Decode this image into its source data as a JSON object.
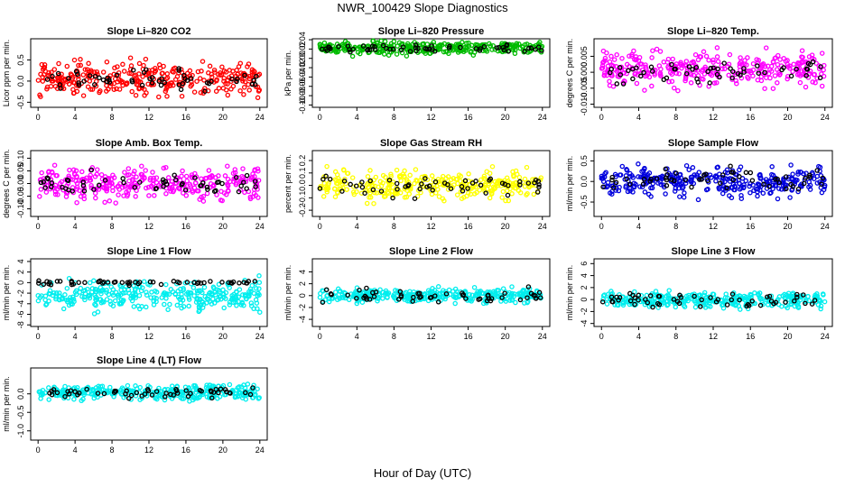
{
  "title": "NWR_100429  Slope Diagnostics",
  "xlabel": "Hour of Day (UTC)",
  "chart_data": [
    {
      "type": "scatter",
      "title": "Slope Li–820 CO2",
      "ylabel": "Licor ppm per min.",
      "xlim": [
        -0.8,
        24.8
      ],
      "ylim": [
        -0.62,
        1.0
      ],
      "xticks": [
        0,
        4,
        8,
        12,
        16,
        20,
        24
      ],
      "xtick_labels": [
        "0",
        "4",
        "8",
        "12",
        "16",
        "20",
        "24"
      ],
      "yticks": [
        -0.5,
        0,
        0.5
      ],
      "ytick_labels": [
        "-0.5",
        "0.0",
        "0.5"
      ],
      "series": [
        {
          "name": "",
          "color": "#ff0000",
          "center": 0.05,
          "spread": 0.35,
          "count": 320
        },
        {
          "name": "",
          "color": "#000000",
          "center": 0.05,
          "spread": 0.22,
          "count": 55
        }
      ]
    },
    {
      "type": "scatter",
      "title": "Slope Li–820 Pressure",
      "ylabel": "kPa per min.",
      "xlim": [
        -0.8,
        24.8
      ],
      "ylim": [
        -0.105,
        0.042
      ],
      "xticks": [
        0,
        4,
        8,
        12,
        16,
        20,
        24
      ],
      "xtick_labels": [
        "0",
        "4",
        "8",
        "12",
        "16",
        "20",
        "24"
      ],
      "yticks": [
        -0.1,
        -0.08,
        -0.06,
        -0.04,
        -0.02,
        0,
        0.02,
        0.04
      ],
      "ytick_labels": [
        "-0.10",
        "-0.08",
        "-0.06",
        "-0.04",
        "-0.02",
        "0.00",
        "0.02",
        "0.04"
      ],
      "series": [
        {
          "name": "",
          "color": "#00bb00",
          "center": 0.022,
          "spread": 0.012,
          "count": 320
        },
        {
          "name": "",
          "color": "#000000",
          "center": 0.022,
          "spread": 0.007,
          "count": 55
        }
      ]
    },
    {
      "type": "scatter",
      "title": "Slope Li–820 Temp.",
      "ylabel": "degrees C per min.",
      "xlim": [
        -0.8,
        24.8
      ],
      "ylim": [
        -0.011,
        0.0105
      ],
      "xticks": [
        0,
        4,
        8,
        12,
        16,
        20,
        24
      ],
      "xtick_labels": [
        "0",
        "4",
        "8",
        "12",
        "16",
        "20",
        "24"
      ],
      "yticks": [
        -0.01,
        -0.005,
        0,
        0.005
      ],
      "ytick_labels": [
        "-0.010",
        "-0.005",
        "0.000",
        "0.005"
      ],
      "series": [
        {
          "name": "",
          "color": "#ff00ff",
          "center": 0.001,
          "spread": 0.0045,
          "count": 320
        },
        {
          "name": "",
          "color": "#000000",
          "center": 0.0,
          "spread": 0.003,
          "count": 55
        }
      ]
    },
    {
      "type": "scatter",
      "title": "Slope Amb. Box Temp.",
      "ylabel": "degrees C per min.",
      "xlim": [
        -0.8,
        24.8
      ],
      "ylim": [
        -0.13,
        0.13
      ],
      "xticks": [
        0,
        4,
        8,
        12,
        16,
        20,
        24
      ],
      "xtick_labels": [
        "0",
        "4",
        "8",
        "12",
        "16",
        "20",
        "24"
      ],
      "yticks": [
        -0.1,
        -0.05,
        0,
        0.05,
        0.1
      ],
      "ytick_labels": [
        "-0.10",
        "-0.05",
        "0.00",
        "0.05",
        "0.10"
      ],
      "series": [
        {
          "name": "",
          "color": "#ff00ff",
          "center": 0.0,
          "spread": 0.055,
          "count": 320
        },
        {
          "name": "",
          "color": "#000000",
          "center": 0.0,
          "spread": 0.035,
          "count": 55
        }
      ]
    },
    {
      "type": "scatter",
      "title": "Slope Gas Stream RH",
      "ylabel": "percent per min.",
      "xlim": [
        -0.8,
        24.8
      ],
      "ylim": [
        -0.25,
        0.28
      ],
      "xticks": [
        0,
        4,
        8,
        12,
        16,
        20,
        24
      ],
      "xtick_labels": [
        "0",
        "4",
        "8",
        "12",
        "16",
        "20",
        "24"
      ],
      "yticks": [
        -0.2,
        -0.1,
        0,
        0.1,
        0.2
      ],
      "ytick_labels": [
        "-0.2",
        "-0.1",
        "0.0",
        "0.1",
        "0.2"
      ],
      "series": [
        {
          "name": "",
          "color": "#ffff00",
          "center": 0.0,
          "spread": 0.1,
          "count": 320
        },
        {
          "name": "",
          "color": "#000000",
          "center": 0.0,
          "spread": 0.07,
          "count": 55
        }
      ]
    },
    {
      "type": "scatter",
      "title": "Slope Sample Flow",
      "ylabel": "ml/min per min.",
      "xlim": [
        -0.8,
        24.8
      ],
      "ylim": [
        -0.85,
        0.75
      ],
      "xticks": [
        0,
        4,
        8,
        12,
        16,
        20,
        24
      ],
      "xtick_labels": [
        "0",
        "4",
        "8",
        "12",
        "16",
        "20",
        "24"
      ],
      "yticks": [
        -0.5,
        0,
        0.5
      ],
      "ytick_labels": [
        "-0.5",
        "0.0",
        "0.5"
      ],
      "series": [
        {
          "name": "",
          "color": "#0000dd",
          "center": 0.0,
          "spread": 0.32,
          "count": 320
        },
        {
          "name": "",
          "color": "#000000",
          "center": 0.05,
          "spread": 0.22,
          "count": 55
        }
      ]
    },
    {
      "type": "scatter",
      "title": "Slope Line 1 Flow",
      "ylabel": "ml/min per min.",
      "xlim": [
        -0.8,
        24.8
      ],
      "ylim": [
        -8.3,
        4.5
      ],
      "xticks": [
        0,
        4,
        8,
        12,
        16,
        20,
        24
      ],
      "xtick_labels": [
        "0",
        "4",
        "8",
        "12",
        "16",
        "20",
        "24"
      ],
      "yticks": [
        -8,
        -6,
        -4,
        -2,
        0,
        2,
        4
      ],
      "ytick_labels": [
        "-8",
        "-6",
        "-4",
        "-2",
        "0",
        "2",
        "4"
      ],
      "series": [
        {
          "name": "",
          "color": "#00eeee",
          "center": -2.5,
          "spread": 2.3,
          "count": 320
        },
        {
          "name": "",
          "color": "#000000",
          "center": 0.0,
          "spread": 0.3,
          "count": 55
        }
      ]
    },
    {
      "type": "scatter",
      "title": "Slope Line 2 Flow",
      "ylabel": "ml/min per min.",
      "xlim": [
        -0.8,
        24.8
      ],
      "ylim": [
        -5.2,
        6.2
      ],
      "xticks": [
        0,
        4,
        8,
        12,
        16,
        20,
        24
      ],
      "xtick_labels": [
        "0",
        "4",
        "8",
        "12",
        "16",
        "20",
        "24"
      ],
      "yticks": [
        -4,
        -2,
        0,
        2,
        4
      ],
      "ytick_labels": [
        "-4",
        "-2",
        "0",
        "2",
        "4"
      ],
      "series": [
        {
          "name": "",
          "color": "#00eeee",
          "center": 0.0,
          "spread": 1.1,
          "count": 320
        },
        {
          "name": "",
          "color": "#000000",
          "center": 0.0,
          "spread": 0.9,
          "count": 55
        }
      ]
    },
    {
      "type": "scatter",
      "title": "Slope Line 3 Flow",
      "ylabel": "ml/min per min.",
      "xlim": [
        -0.8,
        24.8
      ],
      "ylim": [
        -4.5,
        6.8
      ],
      "xticks": [
        0,
        4,
        8,
        12,
        16,
        20,
        24
      ],
      "xtick_labels": [
        "0",
        "4",
        "8",
        "12",
        "16",
        "20",
        "24"
      ],
      "yticks": [
        -4,
        -2,
        0,
        2,
        4,
        6
      ],
      "ytick_labels": [
        "-4",
        "-2",
        "0",
        "2",
        "4",
        "6"
      ],
      "series": [
        {
          "name": "",
          "color": "#00eeee",
          "center": 0.0,
          "spread": 1.1,
          "count": 320
        },
        {
          "name": "",
          "color": "#000000",
          "center": 0.0,
          "spread": 0.9,
          "count": 55
        }
      ]
    },
    {
      "type": "scatter",
      "title": "Slope Line 4 (LT) Flow",
      "ylabel": "ml/min per min.",
      "xlim": [
        -0.8,
        24.8
      ],
      "ylim": [
        -1.25,
        0.7
      ],
      "xticks": [
        0,
        4,
        8,
        12,
        16,
        20,
        24
      ],
      "xtick_labels": [
        "0",
        "4",
        "8",
        "12",
        "16",
        "20",
        "24"
      ],
      "yticks": [
        -1,
        -0.5,
        0
      ],
      "ytick_labels": [
        "-1.0",
        "-0.5",
        "0.0"
      ],
      "series": [
        {
          "name": "",
          "color": "#00eeee",
          "center": 0.05,
          "spread": 0.18,
          "count": 320
        },
        {
          "name": "",
          "color": "#000000",
          "center": 0.05,
          "spread": 0.12,
          "count": 55
        }
      ]
    }
  ]
}
